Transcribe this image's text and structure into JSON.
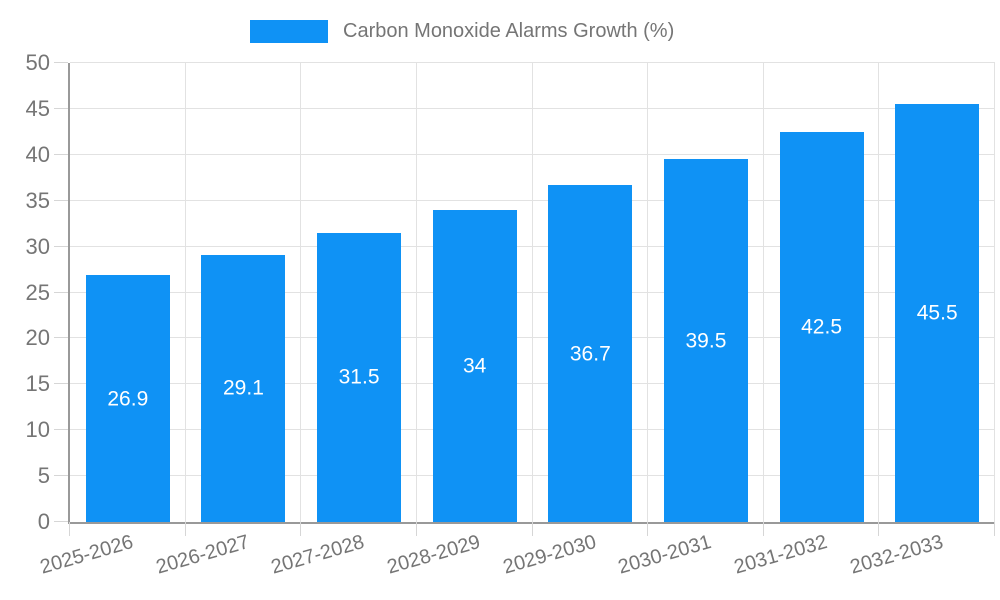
{
  "legend": {
    "label": "Carbon Monoxide Alarms Growth (%)"
  },
  "colors": {
    "bar": "#0f92f5",
    "axis_line": "#999999",
    "gridline": "#e2e2e2",
    "tick": "#d6d6d6",
    "axis_text": "#757575",
    "value_text": "#ffffff",
    "background": "#ffffff"
  },
  "chart_data": {
    "type": "bar",
    "title": "Carbon Monoxide Alarms Growth (%)",
    "legend_entries": [
      "Carbon Monoxide Alarms Growth (%)"
    ],
    "legend_position": "top-center",
    "categories": [
      "2025-2026",
      "2026-2027",
      "2027-2028",
      "2028-2029",
      "2029-2030",
      "2030-2031",
      "2031-2032",
      "2032-2033"
    ],
    "series": [
      {
        "name": "Carbon Monoxide Alarms Growth (%)",
        "values": [
          26.9,
          29.1,
          31.5,
          34,
          36.7,
          39.5,
          42.5,
          45.5
        ]
      }
    ],
    "value_labels": [
      "26.9",
      "29.1",
      "31.5",
      "34",
      "36.7",
      "39.5",
      "42.5",
      "45.5"
    ],
    "bar_label_position": "inside-center",
    "xlabel": "",
    "ylabel": "",
    "ylim": [
      0,
      50
    ],
    "yticks": [
      0,
      5,
      10,
      15,
      20,
      25,
      30,
      35,
      40,
      45,
      50
    ],
    "grid": true,
    "x_label_rotation_deg": -16
  }
}
